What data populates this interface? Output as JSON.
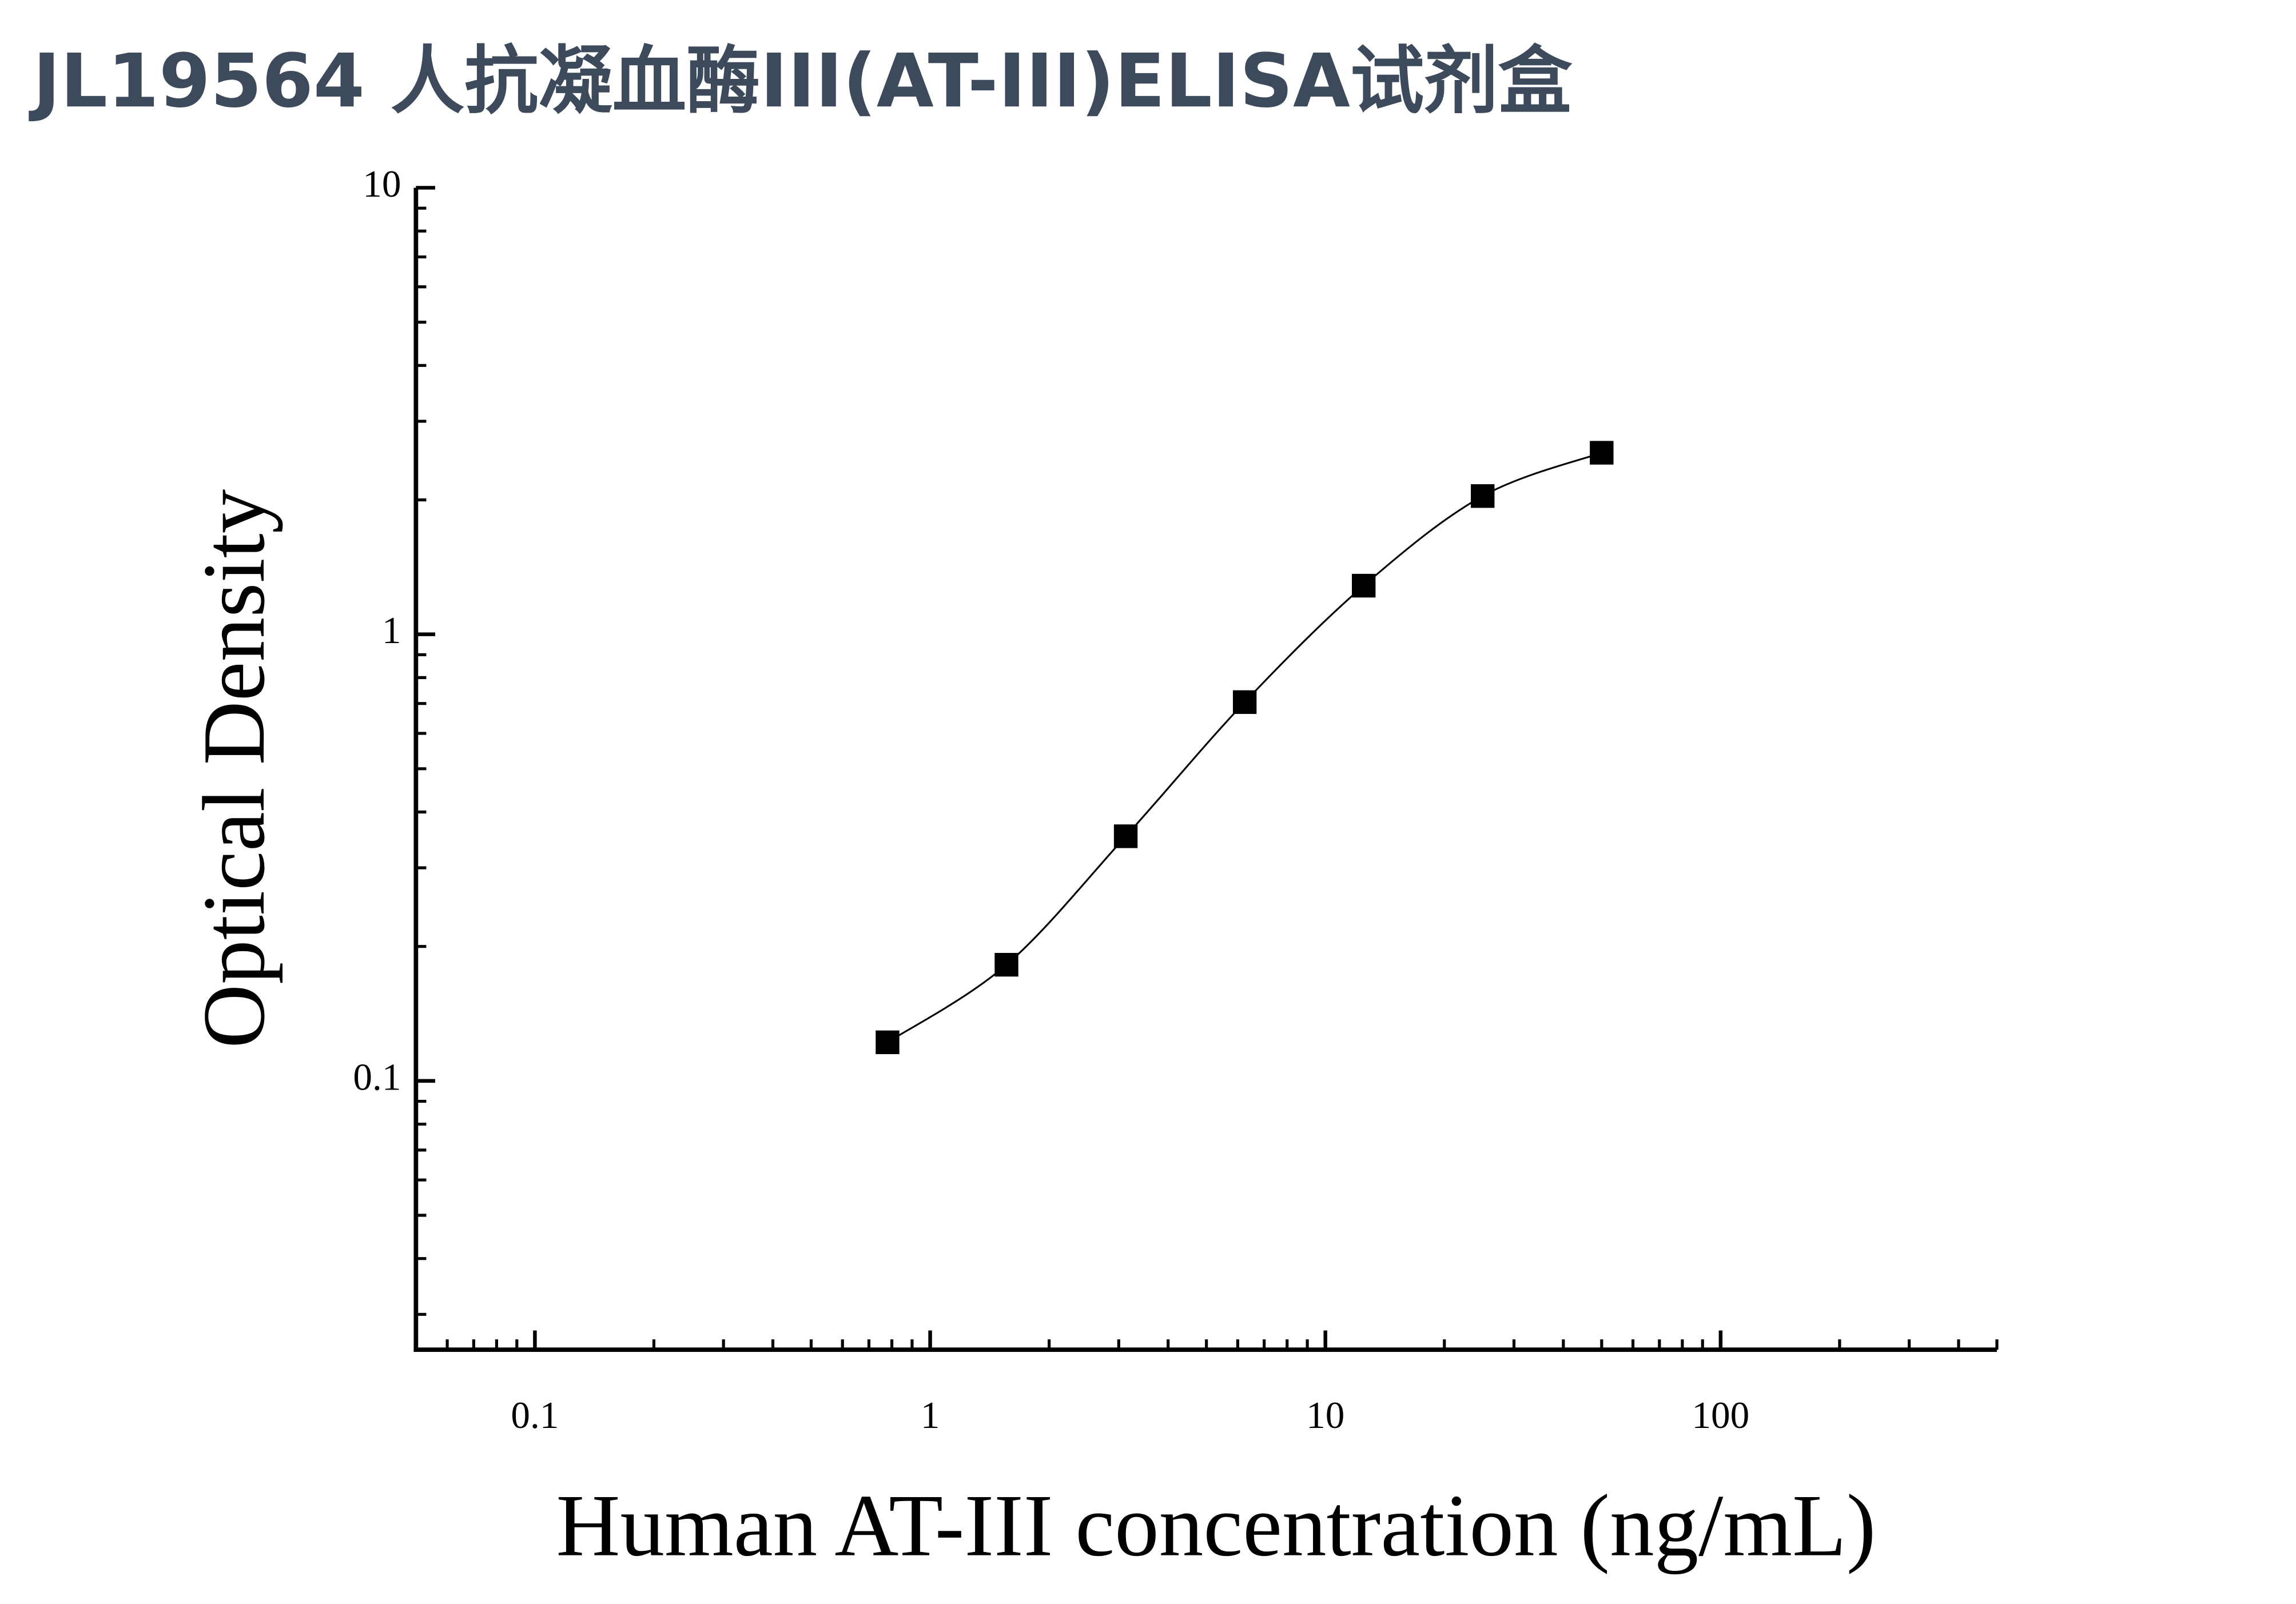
{
  "chart_data": {
    "type": "scatter",
    "title": "JL19564 人抗凝血酶III(AT-III)ELISA试剂盒",
    "x_label": "Human AT-III concentration (ng/mL)",
    "y_label": "Optical Density",
    "x_scale": "log",
    "y_scale": "log",
    "xlim": [
      0.05,
      500
    ],
    "ylim": [
      0.025,
      10
    ],
    "xticks": [
      0.1,
      1,
      10,
      100
    ],
    "yticks": [
      0.1,
      1,
      10
    ],
    "fit_curve": true,
    "series": [
      {
        "color": "#000000",
        "x": [
          0.78,
          1.56,
          3.125,
          6.25,
          12.5,
          25,
          50
        ],
        "values": [
          0.122,
          0.182,
          0.353,
          0.705,
          1.285,
          2.04,
          2.55
        ]
      }
    ]
  }
}
